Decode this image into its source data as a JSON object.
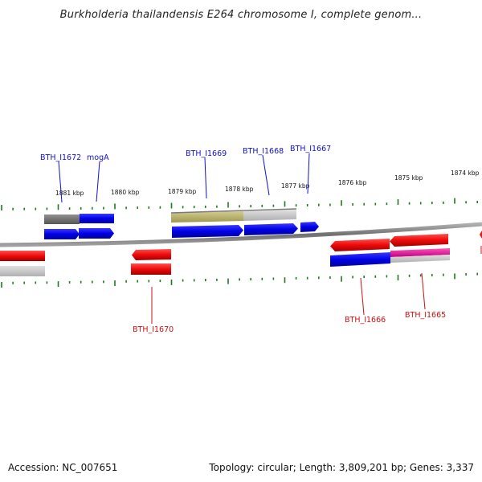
{
  "title": "Burkholderia thailandensis E264 chromosome I, complete genom...",
  "footer": {
    "accession": "Accession: NC_007651",
    "stats": "Topology: circular; Length: 3,809,201 bp; Genes: 3,337"
  },
  "colors": {
    "backbone": "#8a8a8a",
    "tick": "#1e7a1e",
    "forward_gene": "#0000ee",
    "reverse_gene": "#ee1111",
    "gray_feature": "#6e6e6e",
    "olive_feature": "#b8b070",
    "light_gray_feature": "#c8c8c8",
    "pink_feature": "#ee1199",
    "forward_label": "#1010cc",
    "reverse_label": "#cc1010"
  },
  "kbp_labels": [
    "1881 kbp",
    "1880 kbp",
    "1879 kbp",
    "1878 kbp",
    "1877 kbp",
    "1876 kbp",
    "1875 kbp",
    "1874 kbp"
  ],
  "gene_labels": {
    "forward": [
      "BTH_I1672",
      "mogA",
      "BTH_I1669",
      "BTH_I1668",
      "BTH_I1667"
    ],
    "reverse": [
      "BTH_I1670",
      "BTH_I1666",
      "BTH_I1665"
    ]
  }
}
